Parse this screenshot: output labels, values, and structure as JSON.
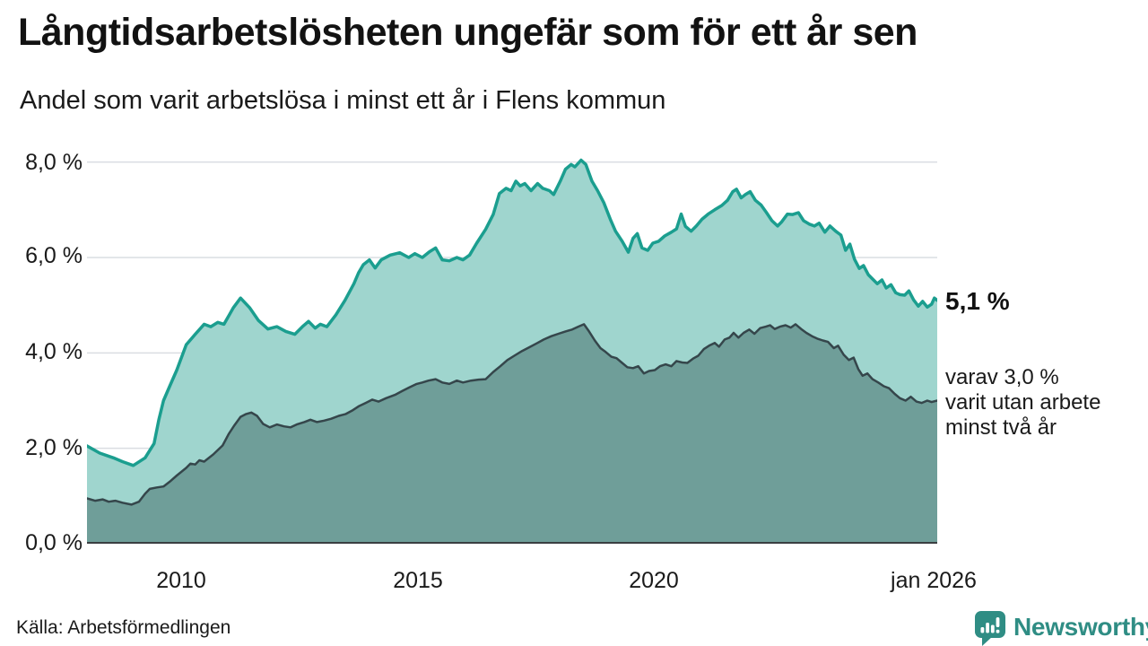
{
  "title": "Långtidsarbetslösheten ungefär som för ett år sen",
  "subtitle": "Andel som varit arbetslösa i minst ett år i Flens kommun",
  "source": "Källa: Arbetsförmedlingen",
  "logo": {
    "text": "Newsworthy",
    "icon": "newsworthy-bubble-barchart-icon",
    "color": "#2f8d84"
  },
  "annotations": {
    "latest_total": "5,1 %",
    "varav_lines": [
      "varav 3,0 %",
      "varit utan arbete",
      "minst två år"
    ]
  },
  "chart_data": {
    "type": "area",
    "title": "Långtidsarbetslösheten ungefär som för ett år sen",
    "subtitle": "Andel som varit arbetslösa i minst ett år i Flens kommun",
    "x_axis": {
      "range": [
        2008.0,
        2026.0
      ],
      "tick_labels": [
        "2010",
        "2015",
        "2020",
        "jan 2026"
      ],
      "tick_positions": [
        2010,
        2015,
        2020,
        2026
      ]
    },
    "y_axis": {
      "range": [
        0,
        8.2
      ],
      "unit": "%",
      "tick_labels": [
        "8,0 %",
        "6,0 %",
        "4,0 %",
        "2,0 %",
        "0,0 %"
      ],
      "gridlines": [
        2,
        4,
        6,
        8
      ]
    },
    "colors": {
      "grid": "#dadde2",
      "baseline": "#3a3f42",
      "series1_line": "#1b9e8f",
      "series1_fill": "#9fd5ce",
      "series2_line": "#35464b",
      "series2_fill": "#6f9e99"
    },
    "legend_position": "none",
    "series": [
      {
        "name": "Arbetslösa minst ett år",
        "latest_value": 5.1,
        "stroke": "#1b9e8f",
        "fill": "#9fd5ce",
        "stroke_width": 3.5,
        "points": [
          [
            2008.0,
            2.05
          ],
          [
            2008.27,
            1.9
          ],
          [
            2008.56,
            1.8
          ],
          [
            2008.75,
            1.72
          ],
          [
            2008.98,
            1.64
          ],
          [
            2009.23,
            1.8
          ],
          [
            2009.42,
            2.1
          ],
          [
            2009.52,
            2.6
          ],
          [
            2009.62,
            3.0
          ],
          [
            2009.75,
            3.3
          ],
          [
            2009.9,
            3.64
          ],
          [
            2010.1,
            4.17
          ],
          [
            2010.29,
            4.39
          ],
          [
            2010.48,
            4.6
          ],
          [
            2010.62,
            4.55
          ],
          [
            2010.77,
            4.64
          ],
          [
            2010.9,
            4.6
          ],
          [
            2011.1,
            4.95
          ],
          [
            2011.25,
            5.15
          ],
          [
            2011.44,
            4.95
          ],
          [
            2011.63,
            4.68
          ],
          [
            2011.83,
            4.5
          ],
          [
            2012.02,
            4.55
          ],
          [
            2012.21,
            4.45
          ],
          [
            2012.4,
            4.39
          ],
          [
            2012.56,
            4.55
          ],
          [
            2012.69,
            4.66
          ],
          [
            2012.83,
            4.52
          ],
          [
            2012.94,
            4.6
          ],
          [
            2013.08,
            4.55
          ],
          [
            2013.27,
            4.8
          ],
          [
            2013.46,
            5.1
          ],
          [
            2013.65,
            5.45
          ],
          [
            2013.75,
            5.68
          ],
          [
            2013.85,
            5.85
          ],
          [
            2013.98,
            5.95
          ],
          [
            2014.1,
            5.78
          ],
          [
            2014.23,
            5.95
          ],
          [
            2014.42,
            6.05
          ],
          [
            2014.62,
            6.1
          ],
          [
            2014.81,
            6.0
          ],
          [
            2014.94,
            6.08
          ],
          [
            2015.1,
            6.0
          ],
          [
            2015.25,
            6.12
          ],
          [
            2015.38,
            6.2
          ],
          [
            2015.52,
            5.95
          ],
          [
            2015.67,
            5.93
          ],
          [
            2015.83,
            6.0
          ],
          [
            2015.96,
            5.95
          ],
          [
            2016.1,
            6.05
          ],
          [
            2016.25,
            6.3
          ],
          [
            2016.44,
            6.59
          ],
          [
            2016.6,
            6.9
          ],
          [
            2016.73,
            7.34
          ],
          [
            2016.87,
            7.45
          ],
          [
            2016.98,
            7.4
          ],
          [
            2017.08,
            7.6
          ],
          [
            2017.17,
            7.5
          ],
          [
            2017.27,
            7.55
          ],
          [
            2017.4,
            7.4
          ],
          [
            2017.54,
            7.55
          ],
          [
            2017.65,
            7.45
          ],
          [
            2017.79,
            7.4
          ],
          [
            2017.88,
            7.32
          ],
          [
            2018.02,
            7.6
          ],
          [
            2018.13,
            7.85
          ],
          [
            2018.25,
            7.95
          ],
          [
            2018.33,
            7.9
          ],
          [
            2018.46,
            8.04
          ],
          [
            2018.56,
            7.95
          ],
          [
            2018.69,
            7.6
          ],
          [
            2018.81,
            7.4
          ],
          [
            2018.94,
            7.15
          ],
          [
            2019.08,
            6.8
          ],
          [
            2019.19,
            6.55
          ],
          [
            2019.33,
            6.34
          ],
          [
            2019.46,
            6.11
          ],
          [
            2019.56,
            6.4
          ],
          [
            2019.65,
            6.5
          ],
          [
            2019.75,
            6.2
          ],
          [
            2019.87,
            6.15
          ],
          [
            2019.98,
            6.3
          ],
          [
            2020.1,
            6.34
          ],
          [
            2020.23,
            6.45
          ],
          [
            2020.37,
            6.53
          ],
          [
            2020.48,
            6.6
          ],
          [
            2020.58,
            6.91
          ],
          [
            2020.67,
            6.65
          ],
          [
            2020.79,
            6.55
          ],
          [
            2020.9,
            6.66
          ],
          [
            2021.02,
            6.8
          ],
          [
            2021.15,
            6.91
          ],
          [
            2021.29,
            7.0
          ],
          [
            2021.44,
            7.09
          ],
          [
            2021.56,
            7.2
          ],
          [
            2021.67,
            7.38
          ],
          [
            2021.75,
            7.43
          ],
          [
            2021.85,
            7.25
          ],
          [
            2021.94,
            7.32
          ],
          [
            2022.04,
            7.38
          ],
          [
            2022.15,
            7.2
          ],
          [
            2022.27,
            7.1
          ],
          [
            2022.38,
            6.95
          ],
          [
            2022.5,
            6.77
          ],
          [
            2022.62,
            6.66
          ],
          [
            2022.71,
            6.75
          ],
          [
            2022.83,
            6.91
          ],
          [
            2022.94,
            6.9
          ],
          [
            2023.06,
            6.94
          ],
          [
            2023.17,
            6.77
          ],
          [
            2023.29,
            6.7
          ],
          [
            2023.4,
            6.66
          ],
          [
            2023.5,
            6.72
          ],
          [
            2023.62,
            6.53
          ],
          [
            2023.73,
            6.66
          ],
          [
            2023.85,
            6.55
          ],
          [
            2023.96,
            6.47
          ],
          [
            2024.06,
            6.15
          ],
          [
            2024.15,
            6.28
          ],
          [
            2024.25,
            5.96
          ],
          [
            2024.35,
            5.77
          ],
          [
            2024.44,
            5.83
          ],
          [
            2024.54,
            5.64
          ],
          [
            2024.63,
            5.55
          ],
          [
            2024.73,
            5.45
          ],
          [
            2024.83,
            5.53
          ],
          [
            2024.92,
            5.36
          ],
          [
            2025.02,
            5.43
          ],
          [
            2025.12,
            5.26
          ],
          [
            2025.21,
            5.22
          ],
          [
            2025.31,
            5.21
          ],
          [
            2025.4,
            5.3
          ],
          [
            2025.5,
            5.11
          ],
          [
            2025.6,
            4.98
          ],
          [
            2025.69,
            5.08
          ],
          [
            2025.79,
            4.96
          ],
          [
            2025.88,
            5.02
          ],
          [
            2025.94,
            5.15
          ],
          [
            2026.0,
            5.1
          ]
        ]
      },
      {
        "name": "varav arbetslösa minst två år",
        "latest_value": 3.0,
        "stroke": "#35464b",
        "fill": "#6f9e99",
        "stroke_width": 2.5,
        "points": [
          [
            2008.0,
            0.95
          ],
          [
            2008.17,
            0.9
          ],
          [
            2008.33,
            0.93
          ],
          [
            2008.46,
            0.88
          ],
          [
            2008.6,
            0.9
          ],
          [
            2008.75,
            0.86
          ],
          [
            2008.94,
            0.82
          ],
          [
            2009.1,
            0.88
          ],
          [
            2009.23,
            1.05
          ],
          [
            2009.33,
            1.15
          ],
          [
            2009.48,
            1.18
          ],
          [
            2009.62,
            1.2
          ],
          [
            2009.75,
            1.3
          ],
          [
            2009.9,
            1.43
          ],
          [
            2010.1,
            1.59
          ],
          [
            2010.19,
            1.68
          ],
          [
            2010.29,
            1.66
          ],
          [
            2010.38,
            1.75
          ],
          [
            2010.48,
            1.72
          ],
          [
            2010.67,
            1.87
          ],
          [
            2010.87,
            2.06
          ],
          [
            2011.0,
            2.3
          ],
          [
            2011.12,
            2.48
          ],
          [
            2011.25,
            2.66
          ],
          [
            2011.37,
            2.72
          ],
          [
            2011.48,
            2.75
          ],
          [
            2011.6,
            2.68
          ],
          [
            2011.73,
            2.51
          ],
          [
            2011.87,
            2.44
          ],
          [
            2012.02,
            2.5
          ],
          [
            2012.17,
            2.46
          ],
          [
            2012.31,
            2.44
          ],
          [
            2012.44,
            2.5
          ],
          [
            2012.6,
            2.55
          ],
          [
            2012.73,
            2.6
          ],
          [
            2012.87,
            2.55
          ],
          [
            2013.02,
            2.58
          ],
          [
            2013.17,
            2.62
          ],
          [
            2013.33,
            2.68
          ],
          [
            2013.48,
            2.72
          ],
          [
            2013.63,
            2.8
          ],
          [
            2013.75,
            2.88
          ],
          [
            2013.9,
            2.95
          ],
          [
            2014.04,
            3.02
          ],
          [
            2014.17,
            2.98
          ],
          [
            2014.33,
            3.05
          ],
          [
            2014.52,
            3.12
          ],
          [
            2014.67,
            3.2
          ],
          [
            2014.83,
            3.28
          ],
          [
            2014.98,
            3.35
          ],
          [
            2015.1,
            3.38
          ],
          [
            2015.23,
            3.42
          ],
          [
            2015.38,
            3.45
          ],
          [
            2015.52,
            3.38
          ],
          [
            2015.67,
            3.35
          ],
          [
            2015.83,
            3.42
          ],
          [
            2015.96,
            3.38
          ],
          [
            2016.13,
            3.42
          ],
          [
            2016.29,
            3.44
          ],
          [
            2016.44,
            3.45
          ],
          [
            2016.6,
            3.6
          ],
          [
            2016.75,
            3.72
          ],
          [
            2016.9,
            3.85
          ],
          [
            2017.06,
            3.95
          ],
          [
            2017.21,
            4.04
          ],
          [
            2017.37,
            4.12
          ],
          [
            2017.52,
            4.2
          ],
          [
            2017.67,
            4.28
          ],
          [
            2017.83,
            4.35
          ],
          [
            2017.98,
            4.4
          ],
          [
            2018.13,
            4.45
          ],
          [
            2018.27,
            4.49
          ],
          [
            2018.4,
            4.55
          ],
          [
            2018.52,
            4.6
          ],
          [
            2018.63,
            4.45
          ],
          [
            2018.75,
            4.26
          ],
          [
            2018.87,
            4.1
          ],
          [
            2018.98,
            4.02
          ],
          [
            2019.1,
            3.92
          ],
          [
            2019.21,
            3.89
          ],
          [
            2019.33,
            3.79
          ],
          [
            2019.44,
            3.7
          ],
          [
            2019.56,
            3.68
          ],
          [
            2019.67,
            3.72
          ],
          [
            2019.79,
            3.57
          ],
          [
            2019.9,
            3.62
          ],
          [
            2020.02,
            3.64
          ],
          [
            2020.13,
            3.72
          ],
          [
            2020.25,
            3.76
          ],
          [
            2020.37,
            3.72
          ],
          [
            2020.48,
            3.83
          ],
          [
            2020.6,
            3.8
          ],
          [
            2020.71,
            3.79
          ],
          [
            2020.83,
            3.88
          ],
          [
            2020.94,
            3.94
          ],
          [
            2021.06,
            4.08
          ],
          [
            2021.17,
            4.15
          ],
          [
            2021.29,
            4.21
          ],
          [
            2021.38,
            4.13
          ],
          [
            2021.5,
            4.28
          ],
          [
            2021.6,
            4.32
          ],
          [
            2021.69,
            4.42
          ],
          [
            2021.79,
            4.32
          ],
          [
            2021.9,
            4.42
          ],
          [
            2022.02,
            4.49
          ],
          [
            2022.13,
            4.4
          ],
          [
            2022.25,
            4.52
          ],
          [
            2022.37,
            4.55
          ],
          [
            2022.46,
            4.58
          ],
          [
            2022.56,
            4.5
          ],
          [
            2022.67,
            4.55
          ],
          [
            2022.79,
            4.58
          ],
          [
            2022.9,
            4.53
          ],
          [
            2023.0,
            4.6
          ],
          [
            2023.12,
            4.5
          ],
          [
            2023.23,
            4.42
          ],
          [
            2023.35,
            4.35
          ],
          [
            2023.46,
            4.3
          ],
          [
            2023.58,
            4.26
          ],
          [
            2023.69,
            4.23
          ],
          [
            2023.81,
            4.1
          ],
          [
            2023.9,
            4.15
          ],
          [
            2024.02,
            3.96
          ],
          [
            2024.13,
            3.85
          ],
          [
            2024.23,
            3.9
          ],
          [
            2024.33,
            3.66
          ],
          [
            2024.42,
            3.52
          ],
          [
            2024.52,
            3.57
          ],
          [
            2024.63,
            3.45
          ],
          [
            2024.75,
            3.38
          ],
          [
            2024.87,
            3.3
          ],
          [
            2024.98,
            3.26
          ],
          [
            2025.1,
            3.14
          ],
          [
            2025.21,
            3.05
          ],
          [
            2025.33,
            3.0
          ],
          [
            2025.44,
            3.08
          ],
          [
            2025.56,
            2.98
          ],
          [
            2025.67,
            2.95
          ],
          [
            2025.79,
            3.0
          ],
          [
            2025.88,
            2.97
          ],
          [
            2026.0,
            3.0
          ]
        ]
      }
    ]
  }
}
